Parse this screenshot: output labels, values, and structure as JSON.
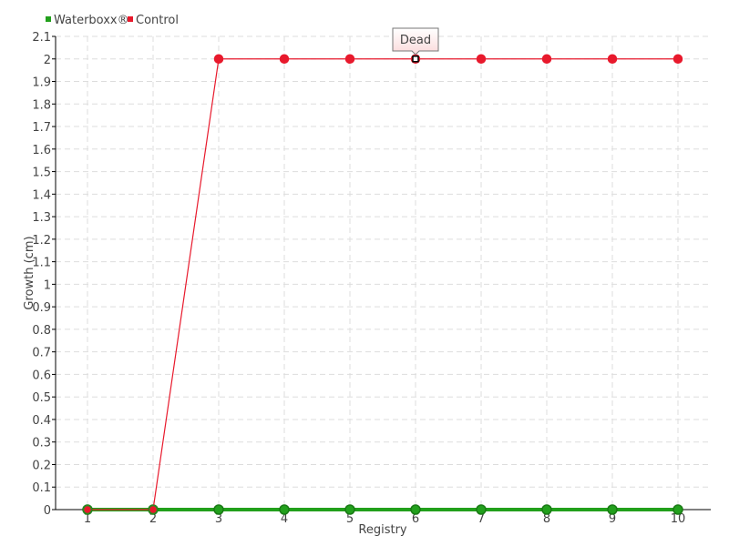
{
  "chart_data": {
    "type": "line",
    "x": [
      1,
      2,
      3,
      4,
      5,
      6,
      7,
      8,
      9,
      10
    ],
    "xlabel": "Registry",
    "ylabel": "Growth (cm)",
    "ylim": [
      0,
      2.1
    ],
    "xlim": [
      0.5,
      10.5
    ],
    "yticks": [
      "0",
      "0.1",
      "0.2",
      "0.3",
      "0.4",
      "0.5",
      "0.6",
      "0.7",
      "0.8",
      "0.9",
      "1",
      "1.1",
      "1.2",
      "1.3",
      "1.4",
      "1.5",
      "1.6",
      "1.7",
      "1.8",
      "1.9",
      "2",
      "2.1"
    ],
    "xticks": [
      "1",
      "2",
      "3",
      "4",
      "5",
      "6",
      "7",
      "8",
      "9",
      "10"
    ],
    "grid": true,
    "legend_position": "top-left",
    "series": [
      {
        "name": "Waterboxx®",
        "color": "#22a01c",
        "values": [
          0,
          0,
          0,
          0,
          0,
          0,
          0,
          0,
          0,
          0
        ]
      },
      {
        "name": "Control",
        "color": "#e8192c",
        "values": [
          0,
          0,
          2,
          2,
          2,
          2,
          2,
          2,
          2,
          2
        ]
      }
    ],
    "tooltip": {
      "text": "Dead",
      "series": "Control",
      "x": 6
    }
  }
}
